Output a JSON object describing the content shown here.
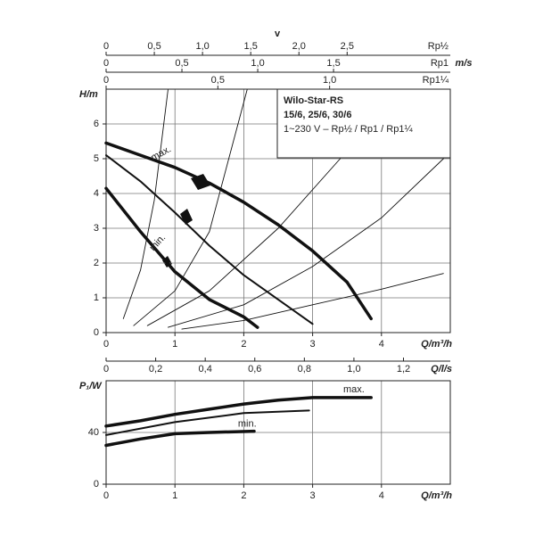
{
  "chart_data": [
    {
      "type": "line",
      "title_box": [
        "Wilo-Star-RS",
        "15/6, 25/6, 30/6",
        "1~230 V – Rp½ / Rp1 / Rp1¼"
      ],
      "velocity_axes": {
        "label": "v",
        "unit": "m/s",
        "axes": [
          {
            "name": "Rp½",
            "xlim": [
              0,
              3.57
            ],
            "xticks": [
              0,
              {
                "value": 0.5,
                "label": "0,5"
              },
              {
                "value": 1,
                "label": "1,0"
              },
              {
                "value": 1.5,
                "label": "1,5"
              },
              {
                "value": 2,
                "label": "2,0"
              },
              {
                "value": 2.5,
                "label": "2,5"
              }
            ]
          },
          {
            "name": "Rp1",
            "xlim": [
              0,
              2.27
            ],
            "xticks": [
              0,
              {
                "value": 0.5,
                "label": "0,5"
              },
              {
                "value": 1,
                "label": "1,0"
              },
              {
                "value": 1.5,
                "label": "1,5"
              }
            ]
          },
          {
            "name": "Rp1¼",
            "xlim": [
              0,
              1.54
            ],
            "xticks": [
              0,
              {
                "value": 0.5,
                "label": "0,5"
              },
              {
                "value": 1,
                "label": "1,0"
              }
            ]
          }
        ]
      },
      "ylabel": "H/m",
      "xlabel": "Q/m³/h",
      "xlim": [
        0,
        5
      ],
      "xticks": [
        0,
        1,
        2,
        3,
        4
      ],
      "ylim": [
        0,
        7
      ],
      "yticks": [
        0,
        1,
        2,
        3,
        4,
        5,
        6
      ],
      "grid": true,
      "series": [
        {
          "label": "max.",
          "color": "#111111",
          "weight": "thick",
          "x": [
            0,
            0.5,
            1,
            1.5,
            2,
            2.5,
            3,
            3.5,
            3.85
          ],
          "values": [
            5.45,
            5.1,
            4.75,
            4.3,
            3.75,
            3.1,
            2.35,
            1.45,
            0.4
          ]
        },
        {
          "color": "#111111",
          "weight": "medium",
          "x": [
            0,
            0.5,
            1,
            1.5,
            2,
            2.5,
            3
          ],
          "values": [
            5.1,
            4.35,
            3.45,
            2.5,
            1.65,
            0.95,
            0.25
          ]
        },
        {
          "label": "min.",
          "color": "#111111",
          "weight": "thick",
          "x": [
            0,
            0.5,
            1,
            1.5,
            2,
            2.2
          ],
          "values": [
            4.15,
            2.9,
            1.75,
            0.95,
            0.45,
            0.15
          ]
        },
        {
          "color": "#111111",
          "weight": "thin",
          "x": [
            0.25,
            0.5,
            0.7,
            0.9
          ],
          "values": [
            0.4,
            1.8,
            3.8,
            7
          ]
        },
        {
          "color": "#111111",
          "weight": "thin",
          "x": [
            0.4,
            1,
            1.5,
            2.05
          ],
          "values": [
            0.2,
            1.2,
            2.9,
            7
          ]
        },
        {
          "color": "#111111",
          "weight": "thin",
          "x": [
            0.6,
            1.5,
            2.5,
            3.4
          ],
          "values": [
            0.2,
            1.2,
            3,
            5
          ]
        },
        {
          "color": "#111111",
          "weight": "thin",
          "x": [
            0.9,
            2,
            3,
            4,
            4.9
          ],
          "values": [
            0.15,
            0.8,
            1.9,
            3.3,
            5
          ]
        },
        {
          "color": "#111111",
          "weight": "thin",
          "x": [
            1.1,
            2,
            3,
            4,
            4.9
          ],
          "values": [
            0.1,
            0.35,
            0.8,
            1.25,
            1.7
          ]
        }
      ]
    },
    {
      "type": "line",
      "secondary_x": {
        "label": "Q/l/s",
        "xlim": [
          0,
          1.3889
        ],
        "xticks": [
          0,
          {
            "value": 0.2,
            "label": "0,2"
          },
          {
            "value": 0.4,
            "label": "0,4"
          },
          {
            "value": 0.6,
            "label": "0,6"
          },
          {
            "value": 0.8,
            "label": "0,8"
          },
          {
            "value": 1,
            "label": "1,0"
          },
          {
            "value": 1.2,
            "label": "1,2"
          }
        ]
      },
      "ylabel": "P₁/W",
      "xlabel": "Q/m³/h",
      "xlim": [
        0,
        5
      ],
      "xticks": [
        0,
        1,
        2,
        3,
        4
      ],
      "ylim": [
        0,
        80
      ],
      "yticks": [
        0,
        40
      ],
      "grid": true,
      "series": [
        {
          "label": "max.",
          "color": "#111111",
          "weight": "thick",
          "x": [
            0,
            0.5,
            1,
            1.5,
            2,
            2.5,
            3,
            3.85
          ],
          "values": [
            45,
            49,
            54,
            58,
            62,
            65,
            67,
            67
          ]
        },
        {
          "color": "#111111",
          "weight": "medium",
          "x": [
            0,
            1,
            2,
            2.95
          ],
          "values": [
            38,
            48,
            55,
            57
          ]
        },
        {
          "label": "min.",
          "color": "#111111",
          "weight": "thick",
          "x": [
            0,
            0.5,
            1,
            1.5,
            2.15
          ],
          "values": [
            30,
            35,
            39,
            40,
            41
          ]
        }
      ]
    }
  ]
}
